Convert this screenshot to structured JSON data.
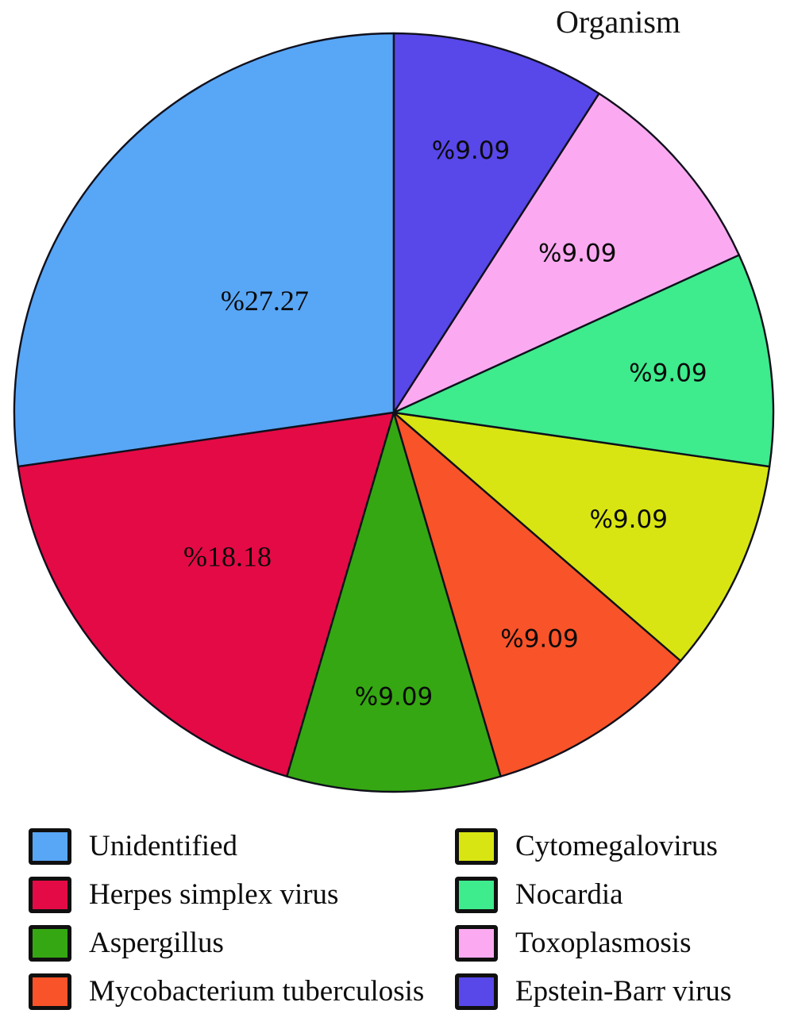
{
  "title": "Organism",
  "chart_data": {
    "type": "pie",
    "title": "Organism",
    "start_angle": 90,
    "counterclockwise": true,
    "legend_position": "bottom",
    "legend_columns": 2,
    "grid": false,
    "slices": [
      {
        "label": "Unidentified",
        "value": 27.27,
        "display": "%27.27",
        "color": "#58a6f6",
        "label_r": 0.45
      },
      {
        "label": "Herpes simplex virus",
        "value": 18.18,
        "display": "%18.18",
        "color": "#e40a45",
        "label_r": 0.58
      },
      {
        "label": "Aspergillus",
        "value": 9.09,
        "display": "%9.09",
        "color": "#35a712",
        "label_r": 0.75
      },
      {
        "label": "Mycobacterium tuberculosis",
        "value": 9.09,
        "display": "%9.09",
        "color": "#f95329",
        "label_r": 0.71
      },
      {
        "label": "Cytomegalovirus",
        "value": 9.09,
        "display": "%9.09",
        "color": "#d8e512",
        "label_r": 0.68
      },
      {
        "label": "Nocardia",
        "value": 9.09,
        "display": "%9.09",
        "color": "#3eeb8d",
        "label_r": 0.73
      },
      {
        "label": "Toxoplasmosis",
        "value": 9.09,
        "display": "%9.09",
        "color": "#fbaaf1",
        "label_r": 0.64
      },
      {
        "label": "Epstein-Barr virus",
        "value": 9.09,
        "display": "%9.09",
        "color": "#5847e9",
        "label_r": 0.72
      }
    ]
  }
}
